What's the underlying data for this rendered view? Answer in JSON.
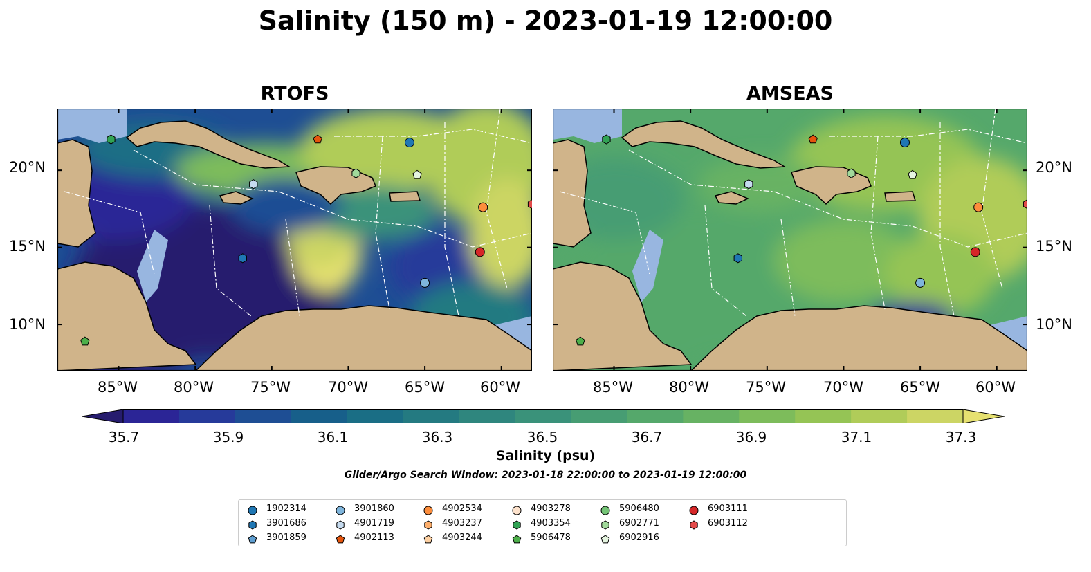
{
  "title": "Salinity (150 m) - 2023-01-19 12:00:00",
  "panels": [
    {
      "title": "RTOFS",
      "field": "rtofs"
    },
    {
      "title": "AMSEAS",
      "field": "amseas"
    }
  ],
  "lat_ticks": [
    "20°N",
    "15°N",
    "10°N"
  ],
  "lon_ticks": [
    "85°W",
    "80°W",
    "75°W",
    "70°W",
    "65°W",
    "60°W"
  ],
  "colorbar": {
    "label": "Salinity (psu)",
    "ticks": [
      "35.7",
      "35.9",
      "36.1",
      "36.3",
      "36.5",
      "36.7",
      "36.9",
      "37.1",
      "37.3"
    ],
    "min": 35.7,
    "max": 37.3,
    "extend": "both",
    "colors": [
      "#261c6e",
      "#2b2596",
      "#263a9a",
      "#1e4e94",
      "#175f8a",
      "#1a6e85",
      "#247a81",
      "#2f867e",
      "#3a927a",
      "#479d73",
      "#55a86b",
      "#67b263",
      "#7dbc5b",
      "#95c455",
      "#b0cc59",
      "#ccd564",
      "#e6e171"
    ]
  },
  "search_window": "Glider/Argo Search Window: 2023-01-18 22:00:00 to 2023-01-19 12:00:00",
  "map_colors": {
    "land": "#d0b48a",
    "shallow": "#98b6e0",
    "border": "#000000"
  },
  "legend": [
    {
      "id": "1902314",
      "marker": "circle",
      "color": "#1f77b4"
    },
    {
      "id": "3901686",
      "marker": "hexagon",
      "color": "#1f77b4"
    },
    {
      "id": "3901859",
      "marker": "pentagon",
      "color": "#5f9fd2"
    },
    {
      "id": "3901860",
      "marker": "circle",
      "color": "#7fb5dc"
    },
    {
      "id": "4901719",
      "marker": "hexagon",
      "color": "#c6dbef"
    },
    {
      "id": "4902113",
      "marker": "pentagon",
      "color": "#e6550d"
    },
    {
      "id": "4902534",
      "marker": "circle",
      "color": "#fd8d3c"
    },
    {
      "id": "4903237",
      "marker": "hexagon",
      "color": "#fdae6b"
    },
    {
      "id": "4903244",
      "marker": "pentagon",
      "color": "#fdd0a2"
    },
    {
      "id": "4903278",
      "marker": "circle",
      "color": "#fde2cc"
    },
    {
      "id": "4903354",
      "marker": "hexagon",
      "color": "#31a354"
    },
    {
      "id": "5906478",
      "marker": "pentagon",
      "color": "#4daf4a"
    },
    {
      "id": "5906480",
      "marker": "circle",
      "color": "#74c476"
    },
    {
      "id": "6902771",
      "marker": "hexagon",
      "color": "#a1d99b"
    },
    {
      "id": "6902916",
      "marker": "pentagon",
      "color": "#e5f5e0"
    },
    {
      "id": "6903111",
      "marker": "circle",
      "color": "#d62728"
    },
    {
      "id": "6903112",
      "marker": "hexagon",
      "color": "#e34a4a"
    }
  ],
  "floats_on_map": [
    {
      "id": "4903354",
      "lon": -85.5,
      "lat": 22.0
    },
    {
      "id": "4902113",
      "lon": -72.0,
      "lat": 22.0
    },
    {
      "id": "1902314",
      "lon": -66.0,
      "lat": 21.8
    },
    {
      "id": "6902771",
      "lon": -69.5,
      "lat": 19.8
    },
    {
      "id": "6902916",
      "lon": -65.5,
      "lat": 19.7
    },
    {
      "id": "4901719",
      "lon": -76.2,
      "lat": 19.1
    },
    {
      "id": "4902534",
      "lon": -61.2,
      "lat": 17.6
    },
    {
      "id": "6903112",
      "lon": -58.0,
      "lat": 17.8
    },
    {
      "id": "6903111",
      "lon": -61.4,
      "lat": 14.7
    },
    {
      "id": "3901686",
      "lon": -76.9,
      "lat": 14.3
    },
    {
      "id": "3901860",
      "lon": -65.0,
      "lat": 12.7
    },
    {
      "id": "5906478",
      "lon": -87.2,
      "lat": 8.9
    }
  ]
}
